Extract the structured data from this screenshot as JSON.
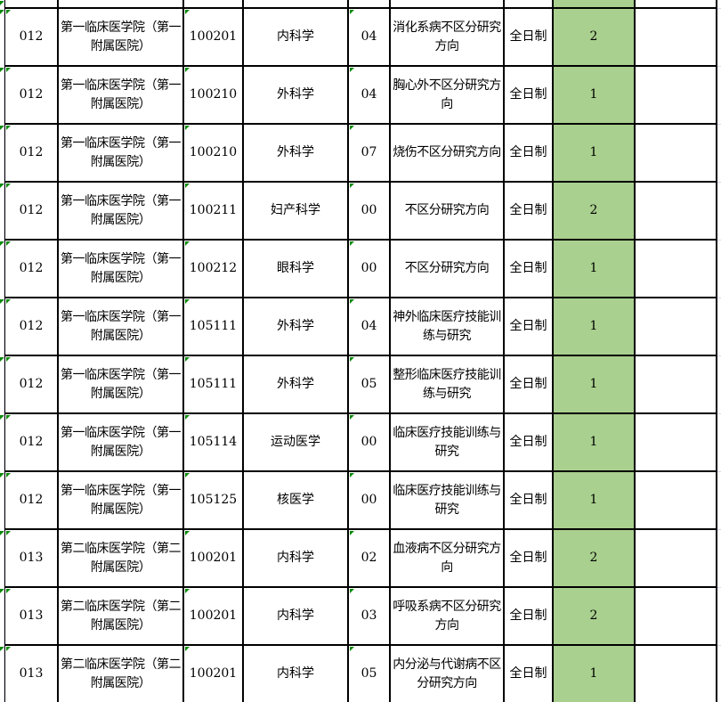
{
  "colors": {
    "quota_highlight_green": "#a9d08e",
    "indicator_triangle_green": "#0a8a0a",
    "outer_gridline_lavender": "#dcd8ee",
    "table_border": "#000000"
  },
  "icons": {
    "text_format_indicator": "green-corner-triangle"
  },
  "table": {
    "rows": [
      {
        "dept_code": "012",
        "dept_name": "第一临床医学院（第一\n附属医院）",
        "major_code": "100201",
        "major_name": "内科学",
        "dir_code": "04",
        "direction": "消化系病不区分研究\n方向",
        "study_mode": "全日制",
        "quota": "2",
        "note": ""
      },
      {
        "dept_code": "012",
        "dept_name": "第一临床医学院（第一\n附属医院）",
        "major_code": "100210",
        "major_name": "外科学",
        "dir_code": "04",
        "direction": "胸心外不区分研究方\n向",
        "study_mode": "全日制",
        "quota": "1",
        "note": ""
      },
      {
        "dept_code": "012",
        "dept_name": "第一临床医学院（第一\n附属医院）",
        "major_code": "100210",
        "major_name": "外科学",
        "dir_code": "07",
        "direction": "烧伤不区分研究方向",
        "study_mode": "全日制",
        "quota": "1",
        "note": ""
      },
      {
        "dept_code": "012",
        "dept_name": "第一临床医学院（第一\n附属医院）",
        "major_code": "100211",
        "major_name": "妇产科学",
        "dir_code": "00",
        "direction": "不区分研究方向",
        "study_mode": "全日制",
        "quota": "2",
        "note": ""
      },
      {
        "dept_code": "012",
        "dept_name": "第一临床医学院（第一\n附属医院）",
        "major_code": "100212",
        "major_name": "眼科学",
        "dir_code": "00",
        "direction": "不区分研究方向",
        "study_mode": "全日制",
        "quota": "1",
        "note": ""
      },
      {
        "dept_code": "012",
        "dept_name": "第一临床医学院（第一\n附属医院）",
        "major_code": "105111",
        "major_name": "外科学",
        "dir_code": "04",
        "direction": "神外临床医疗技能训\n练与研究",
        "study_mode": "全日制",
        "quota": "1",
        "note": ""
      },
      {
        "dept_code": "012",
        "dept_name": "第一临床医学院（第一\n附属医院）",
        "major_code": "105111",
        "major_name": "外科学",
        "dir_code": "05",
        "direction": "整形临床医疗技能训\n练与研究",
        "study_mode": "全日制",
        "quota": "1",
        "note": ""
      },
      {
        "dept_code": "012",
        "dept_name": "第一临床医学院（第一\n附属医院）",
        "major_code": "105114",
        "major_name": "运动医学",
        "dir_code": "00",
        "direction": "临床医疗技能训练与\n研究",
        "study_mode": "全日制",
        "quota": "1",
        "note": ""
      },
      {
        "dept_code": "012",
        "dept_name": "第一临床医学院（第一\n附属医院）",
        "major_code": "105125",
        "major_name": "核医学",
        "dir_code": "00",
        "direction": "临床医疗技能训练与\n研究",
        "study_mode": "全日制",
        "quota": "1",
        "note": ""
      },
      {
        "dept_code": "013",
        "dept_name": "第二临床医学院（第二\n附属医院）",
        "major_code": "100201",
        "major_name": "内科学",
        "dir_code": "02",
        "direction": "血液病不区分研究方\n向",
        "study_mode": "全日制",
        "quota": "2",
        "note": ""
      },
      {
        "dept_code": "013",
        "dept_name": "第二临床医学院（第二\n附属医院）",
        "major_code": "100201",
        "major_name": "内科学",
        "dir_code": "03",
        "direction": "呼吸系病不区分研究\n方向",
        "study_mode": "全日制",
        "quota": "2",
        "note": ""
      },
      {
        "dept_code": "013",
        "dept_name": "第二临床医学院（第二\n附属医院）",
        "major_code": "100201",
        "major_name": "内科学",
        "dir_code": "05",
        "direction": "内分泌与代谢病不区\n分研究方向",
        "study_mode": "全日制",
        "quota": "1",
        "note": ""
      }
    ]
  }
}
